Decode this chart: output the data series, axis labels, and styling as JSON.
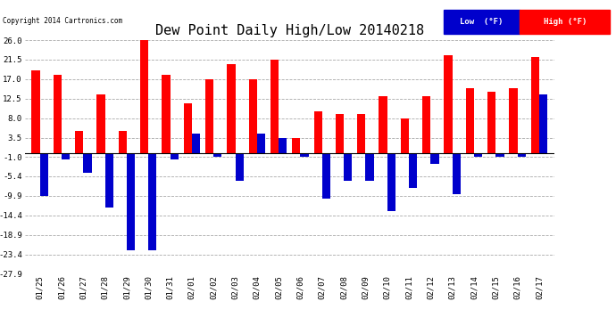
{
  "title": "Dew Point Daily High/Low 20140218",
  "copyright": "Copyright 2014 Cartronics.com",
  "dates": [
    "01/25",
    "01/26",
    "01/27",
    "01/28",
    "01/29",
    "01/30",
    "01/31",
    "02/01",
    "02/02",
    "02/03",
    "02/04",
    "02/05",
    "02/06",
    "02/07",
    "02/08",
    "02/09",
    "02/10",
    "02/11",
    "02/12",
    "02/13",
    "02/14",
    "02/15",
    "02/16",
    "02/17"
  ],
  "high": [
    19.0,
    18.0,
    5.0,
    13.5,
    5.0,
    26.0,
    18.0,
    11.5,
    17.0,
    20.5,
    17.0,
    21.5,
    3.5,
    9.5,
    9.0,
    9.0,
    13.0,
    8.0,
    13.0,
    22.5,
    15.0,
    14.0,
    15.0,
    22.0
  ],
  "low": [
    -10.0,
    -1.5,
    -4.5,
    -12.5,
    -22.5,
    -22.5,
    -1.5,
    4.5,
    -1.0,
    -6.5,
    4.5,
    3.5,
    -1.0,
    -10.5,
    -6.5,
    -6.5,
    -13.5,
    -8.0,
    -2.5,
    -9.5,
    -1.0,
    -1.0,
    -1.0,
    13.5
  ],
  "ylim": [
    -27.9,
    26.0
  ],
  "yticks": [
    26.0,
    21.5,
    17.0,
    12.5,
    8.0,
    3.5,
    -1.0,
    -5.4,
    -9.9,
    -14.4,
    -18.9,
    -23.4,
    -27.9
  ],
  "high_color": "#ff0000",
  "low_color": "#0000cc",
  "background_color": "#ffffff",
  "grid_color": "#aaaaaa",
  "title_fontsize": 11,
  "tick_fontsize": 6.5,
  "legend_fontsize": 6.5
}
